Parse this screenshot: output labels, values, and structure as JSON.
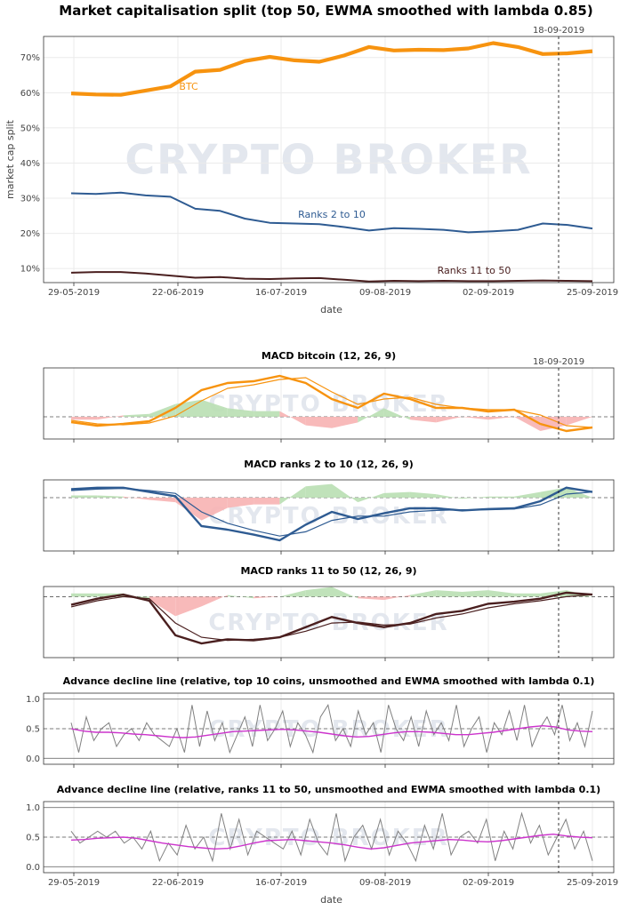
{
  "colors": {
    "btc": "#f7930f",
    "ranks_2_10": "#2e5b92",
    "ranks_11_50": "#4a1f1f",
    "positive_fill": "#b9dfb2",
    "negative_fill": "#f7b3b3",
    "adl_raw": "#808080",
    "adl_smooth": "#cc33cc"
  },
  "watermark": "CRYPTO BROKER",
  "marker_label": "18-09-2019",
  "x_ticks": [
    "29-05-2019",
    "22-06-2019",
    "16-07-2019",
    "09-08-2019",
    "02-09-2019",
    "25-09-2019"
  ],
  "x_label": "date",
  "chart_data": [
    {
      "type": "line",
      "title": "Market capitalisation split (top 50, EWMA smoothed with lambda 0.85)",
      "xlabel": "date",
      "ylabel": "market cap split",
      "ylim": [
        6,
        76
      ],
      "y_ticks": [
        "10%",
        "20%",
        "30%",
        "40%",
        "50%",
        "60%",
        "70%"
      ],
      "series": [
        {
          "name": "BTC",
          "x": [
            "29-05-2019",
            "04-06-2019",
            "10-06-2019",
            "16-06-2019",
            "22-06-2019",
            "28-06-2019",
            "04-07-2019",
            "10-07-2019",
            "16-07-2019",
            "22-07-2019",
            "28-07-2019",
            "03-08-2019",
            "09-08-2019",
            "15-08-2019",
            "21-08-2019",
            "27-08-2019",
            "02-09-2019",
            "08-09-2019",
            "14-09-2019",
            "18-09-2019",
            "22-09-2019",
            "25-09-2019"
          ],
          "values": [
            59.8,
            59.5,
            59.4,
            60.6,
            61.8,
            66.0,
            66.5,
            69.0,
            70.2,
            69.2,
            68.8,
            70.6,
            73.0,
            72.0,
            72.2,
            72.1,
            72.6,
            74.1,
            73.0,
            71.0,
            71.2,
            71.8
          ]
        },
        {
          "name": "Ranks 2 to 10",
          "x": [
            "29-05-2019",
            "04-06-2019",
            "10-06-2019",
            "16-06-2019",
            "22-06-2019",
            "28-06-2019",
            "04-07-2019",
            "10-07-2019",
            "16-07-2019",
            "22-07-2019",
            "28-07-2019",
            "03-08-2019",
            "09-08-2019",
            "15-08-2019",
            "21-08-2019",
            "27-08-2019",
            "02-09-2019",
            "08-09-2019",
            "14-09-2019",
            "18-09-2019",
            "22-09-2019",
            "25-09-2019"
          ],
          "values": [
            31.4,
            31.2,
            31.6,
            30.8,
            30.4,
            27.0,
            26.4,
            24.2,
            23.0,
            22.8,
            22.6,
            21.8,
            20.8,
            21.5,
            21.3,
            21.0,
            20.3,
            20.6,
            21.0,
            22.8,
            22.4,
            21.4
          ]
        },
        {
          "name": "Ranks 11 to 50",
          "x": [
            "29-05-2019",
            "04-06-2019",
            "10-06-2019",
            "16-06-2019",
            "22-06-2019",
            "28-06-2019",
            "04-07-2019",
            "10-07-2019",
            "16-07-2019",
            "22-07-2019",
            "28-07-2019",
            "03-08-2019",
            "09-08-2019",
            "15-08-2019",
            "21-08-2019",
            "27-08-2019",
            "02-09-2019",
            "08-09-2019",
            "14-09-2019",
            "18-09-2019",
            "22-09-2019",
            "25-09-2019"
          ],
          "values": [
            8.8,
            9.0,
            9.0,
            8.6,
            8.0,
            7.4,
            7.6,
            7.1,
            7.0,
            7.2,
            7.3,
            6.8,
            6.3,
            6.5,
            6.4,
            6.5,
            6.4,
            6.4,
            6.5,
            6.6,
            6.5,
            6.4
          ]
        }
      ]
    },
    {
      "type": "line",
      "title": "MACD bitcoin (12, 26, 9)",
      "ylim": [
        -0.25,
        0.55
      ],
      "series": [
        {
          "role": "macd",
          "values": [
            -0.06,
            -0.1,
            -0.08,
            -0.05,
            0.1,
            0.3,
            0.38,
            0.4,
            0.46,
            0.38,
            0.2,
            0.1,
            0.26,
            0.2,
            0.1,
            0.1,
            0.06,
            0.08,
            -0.08,
            -0.16,
            -0.12
          ]
        },
        {
          "role": "signal",
          "values": [
            -0.04,
            -0.08,
            -0.09,
            -0.07,
            0.01,
            0.18,
            0.32,
            0.36,
            0.42,
            0.44,
            0.28,
            0.14,
            0.2,
            0.22,
            0.14,
            0.1,
            0.08,
            0.08,
            0.02,
            -0.1,
            -0.12
          ]
        }
      ]
    },
    {
      "type": "line",
      "title": "MACD ranks 2 to 10 (12, 26, 9)",
      "ylim": [
        -0.75,
        0.25
      ],
      "series": [
        {
          "role": "macd",
          "values": [
            0.12,
            0.14,
            0.14,
            0.08,
            0.02,
            -0.4,
            -0.45,
            -0.52,
            -0.6,
            -0.38,
            -0.2,
            -0.3,
            -0.22,
            -0.15,
            -0.15,
            -0.18,
            -0.16,
            -0.15,
            -0.05,
            0.14,
            0.08
          ]
        },
        {
          "role": "signal",
          "values": [
            0.1,
            0.12,
            0.13,
            0.1,
            0.06,
            -0.2,
            -0.36,
            -0.46,
            -0.54,
            -0.48,
            -0.32,
            -0.26,
            -0.26,
            -0.2,
            -0.18,
            -0.17,
            -0.17,
            -0.16,
            -0.1,
            0.05,
            0.08
          ]
        }
      ]
    },
    {
      "type": "line",
      "title": "MACD ranks 11 to 50 (12, 26, 9)",
      "ylim": [
        -0.6,
        0.1
      ],
      "series": [
        {
          "role": "macd",
          "values": [
            -0.08,
            -0.02,
            0.02,
            -0.04,
            -0.38,
            -0.46,
            -0.42,
            -0.43,
            -0.4,
            -0.3,
            -0.2,
            -0.26,
            -0.3,
            -0.26,
            -0.17,
            -0.14,
            -0.07,
            -0.05,
            -0.02,
            0.04,
            0.02
          ]
        },
        {
          "role": "signal",
          "values": [
            -0.1,
            -0.04,
            0.0,
            -0.02,
            -0.26,
            -0.4,
            -0.43,
            -0.42,
            -0.4,
            -0.34,
            -0.26,
            -0.25,
            -0.28,
            -0.27,
            -0.21,
            -0.17,
            -0.11,
            -0.07,
            -0.04,
            0.0,
            0.02
          ]
        }
      ]
    },
    {
      "type": "line",
      "title": "Advance decline line (relative, top 10 coins, unsmoothed and EWMA smoothed with lambda 0.1)",
      "ylim": [
        -0.1,
        1.1
      ],
      "y_ticks": [
        "0.0",
        "0.5",
        "1.0"
      ],
      "series": [
        {
          "role": "unsmoothed",
          "values": [
            0.6,
            0.1,
            0.7,
            0.3,
            0.5,
            0.6,
            0.2,
            0.4,
            0.5,
            0.3,
            0.6,
            0.4,
            0.3,
            0.2,
            0.5,
            0.1,
            0.9,
            0.2,
            0.8,
            0.3,
            0.6,
            0.1,
            0.4,
            0.7,
            0.2,
            0.9,
            0.3,
            0.5,
            0.8,
            0.2,
            0.6,
            0.4,
            0.1,
            0.7,
            0.9,
            0.3,
            0.5,
            0.2,
            0.8,
            0.4,
            0.6,
            0.1,
            0.9,
            0.5,
            0.3,
            0.7,
            0.2,
            0.8,
            0.4,
            0.6,
            0.3,
            0.9,
            0.2,
            0.5,
            0.7,
            0.1,
            0.6,
            0.4,
            0.8,
            0.3,
            0.9,
            0.2,
            0.5,
            0.7,
            0.4,
            0.9,
            0.3,
            0.6,
            0.2,
            0.8
          ]
        },
        {
          "role": "ewma",
          "values": [
            0.5,
            0.46,
            0.44,
            0.44,
            0.43,
            0.41,
            0.4,
            0.38,
            0.36,
            0.35,
            0.36,
            0.39,
            0.42,
            0.45,
            0.46,
            0.47,
            0.48,
            0.49,
            0.48,
            0.46,
            0.44,
            0.41,
            0.38,
            0.36,
            0.37,
            0.4,
            0.43,
            0.45,
            0.45,
            0.44,
            0.42,
            0.4,
            0.4,
            0.42,
            0.44,
            0.47,
            0.5,
            0.53,
            0.55,
            0.53,
            0.48,
            0.46,
            0.45
          ]
        }
      ]
    },
    {
      "type": "line",
      "title": "Advance decline line (relative, ranks 11 to 50, unsmoothed and EWMA smoothed with lambda 0.1)",
      "ylim": [
        -0.1,
        1.1
      ],
      "y_ticks": [
        "0.0",
        "0.5",
        "1.0"
      ],
      "series": [
        {
          "role": "unsmoothed",
          "values": [
            0.6,
            0.4,
            0.5,
            0.6,
            0.5,
            0.6,
            0.4,
            0.5,
            0.3,
            0.6,
            0.1,
            0.4,
            0.2,
            0.7,
            0.3,
            0.5,
            0.1,
            0.9,
            0.3,
            0.8,
            0.2,
            0.6,
            0.5,
            0.4,
            0.3,
            0.6,
            0.2,
            0.8,
            0.4,
            0.2,
            0.9,
            0.1,
            0.5,
            0.7,
            0.3,
            0.8,
            0.2,
            0.6,
            0.4,
            0.1,
            0.7,
            0.3,
            0.9,
            0.2,
            0.5,
            0.6,
            0.4,
            0.8,
            0.1,
            0.6,
            0.3,
            0.9,
            0.4,
            0.7,
            0.2,
            0.5,
            0.8,
            0.3,
            0.6,
            0.1
          ]
        },
        {
          "role": "ewma",
          "values": [
            0.45,
            0.46,
            0.48,
            0.49,
            0.5,
            0.48,
            0.44,
            0.4,
            0.37,
            0.34,
            0.32,
            0.3,
            0.31,
            0.35,
            0.4,
            0.44,
            0.45,
            0.46,
            0.44,
            0.42,
            0.4,
            0.37,
            0.33,
            0.3,
            0.32,
            0.36,
            0.4,
            0.42,
            0.44,
            0.46,
            0.45,
            0.43,
            0.42,
            0.44,
            0.47,
            0.5,
            0.53,
            0.55,
            0.52,
            0.5,
            0.49
          ]
        }
      ]
    }
  ]
}
